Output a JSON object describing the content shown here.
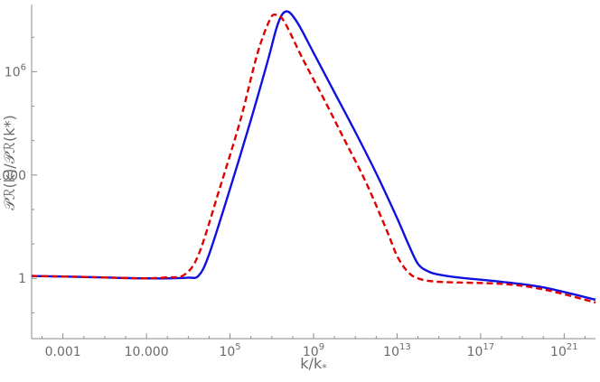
{
  "chart_data": {
    "type": "line",
    "title": "",
    "xlabel": "k/k",
    "xlabel_sub": "*",
    "ylabel": "𝒫ℛ(k)/𝒫ℛ(k*)",
    "x_scale": "log",
    "y_scale": "log",
    "xlim_log10": [
      -4.5,
      22.5
    ],
    "ylim_log10": [
      -1.75,
      7.95
    ],
    "grid": false,
    "legend": "none",
    "x_ticks": [
      {
        "label": "0.001",
        "log10": -3
      },
      {
        "label": "10.000",
        "log10": 1
      },
      {
        "label": "10",
        "sup": "5",
        "log10": 5
      },
      {
        "label": "10",
        "sup": "9",
        "log10": 9
      },
      {
        "label": "10",
        "sup": "13",
        "log10": 13
      },
      {
        "label": "10",
        "sup": "17",
        "log10": 17
      },
      {
        "label": "10",
        "sup": "21",
        "log10": 21
      }
    ],
    "y_ticks": [
      {
        "label": "1",
        "log10": 0
      },
      {
        "label": "1000",
        "log10": 3
      },
      {
        "label": "10",
        "sup": "6",
        "log10": 6
      }
    ],
    "series": [
      {
        "color": "#1010e0",
        "dash": "solid",
        "points_log10": [
          [
            -4.5,
            0.07
          ],
          [
            -2,
            0.04
          ],
          [
            0,
            0.01
          ],
          [
            1,
            0.0
          ],
          [
            2,
            0.0
          ],
          [
            3,
            0.02
          ],
          [
            3.5,
            0.08
          ],
          [
            4,
            0.7
          ],
          [
            5,
            2.6
          ],
          [
            6,
            4.6
          ],
          [
            6.8,
            6.3
          ],
          [
            7.3,
            7.4
          ],
          [
            7.7,
            7.75
          ],
          [
            8.2,
            7.45
          ],
          [
            9,
            6.55
          ],
          [
            10,
            5.4
          ],
          [
            11,
            4.25
          ],
          [
            12,
            3.05
          ],
          [
            13,
            1.75
          ],
          [
            13.5,
            1.05
          ],
          [
            14,
            0.42
          ],
          [
            14.5,
            0.2
          ],
          [
            15,
            0.11
          ],
          [
            16,
            0.02
          ],
          [
            18,
            -0.1
          ],
          [
            20,
            -0.26
          ],
          [
            22.5,
            -0.62
          ]
        ]
      },
      {
        "color": "#e00000",
        "dash": "dashed",
        "points_log10": [
          [
            -4.5,
            0.07
          ],
          [
            -2,
            0.04
          ],
          [
            0,
            0.01
          ],
          [
            1,
            0.0
          ],
          [
            2,
            0.03
          ],
          [
            2.8,
            0.1
          ],
          [
            3.5,
            0.7
          ],
          [
            4.5,
            2.6
          ],
          [
            5.5,
            4.6
          ],
          [
            6.3,
            6.5
          ],
          [
            6.9,
            7.5
          ],
          [
            7.2,
            7.65
          ],
          [
            7.6,
            7.45
          ],
          [
            8.5,
            6.35
          ],
          [
            9.5,
            5.2
          ],
          [
            10.5,
            4.0
          ],
          [
            11.5,
            2.8
          ],
          [
            12.5,
            1.4
          ],
          [
            13,
            0.65
          ],
          [
            13.5,
            0.2
          ],
          [
            14,
            0.0
          ],
          [
            15,
            -0.1
          ],
          [
            18,
            -0.16
          ],
          [
            20,
            -0.32
          ],
          [
            22.5,
            -0.7
          ]
        ]
      }
    ]
  }
}
